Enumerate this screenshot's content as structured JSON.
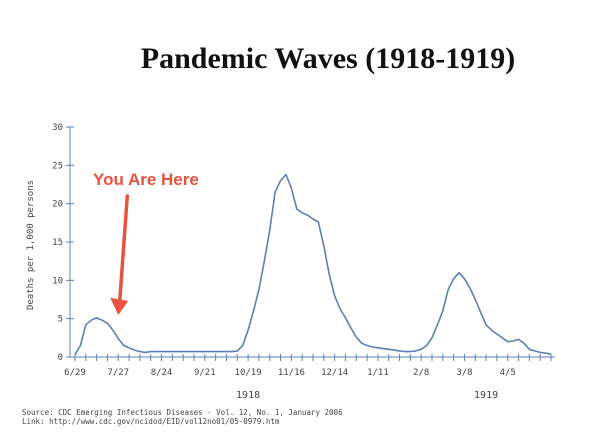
{
  "chart_data": {
    "type": "line",
    "title": "Pandemic Waves (1918-1919)",
    "ylabel": "Deaths per 1,000 persons",
    "ylim": [
      0,
      30
    ],
    "yticks": [
      0,
      5,
      10,
      15,
      20,
      25,
      30
    ],
    "x_tick_labels": [
      "6/29",
      "7/27",
      "8/24",
      "9/21",
      "10/19",
      "11/16",
      "12/14",
      "1/11",
      "2/8",
      "3/8",
      "4/5"
    ],
    "year_labels": [
      "1918",
      "1919"
    ],
    "series": [
      {
        "color": "#5b80b8",
        "x": [
          0,
          0.5,
          1,
          1.5,
          2,
          2.5,
          3,
          3.5,
          4,
          4.5,
          5,
          5.5,
          6,
          6.5,
          7,
          7.5,
          8,
          8.5,
          9,
          9.5,
          10,
          10.5,
          11,
          11.5,
          12,
          12.5,
          13,
          13.5,
          14,
          14.5,
          15,
          15.5,
          16,
          16.5,
          17,
          17.5,
          18,
          18.5,
          19,
          19.5,
          20,
          20.5,
          21,
          21.5,
          22,
          22.5,
          23,
          23.5,
          24,
          24.5,
          25,
          25.5,
          26,
          26.5,
          27,
          27.5,
          28,
          28.5,
          29,
          29.5,
          30,
          30.5,
          31,
          31.5,
          32,
          32.5,
          33,
          33.5,
          34,
          34.5,
          35,
          35.5,
          36,
          36.5,
          37,
          37.5,
          38,
          38.5,
          39,
          39.5,
          40,
          40.5,
          41,
          41.5,
          42,
          42.5,
          43,
          43.5,
          44
        ],
        "values": [
          0.3,
          1.5,
          4.2,
          4.8,
          5.1,
          4.8,
          4.4,
          3.5,
          2.4,
          1.5,
          1.2,
          0.9,
          0.7,
          0.6,
          0.7,
          0.7,
          0.7,
          0.7,
          0.7,
          0.7,
          0.7,
          0.7,
          0.7,
          0.7,
          0.7,
          0.7,
          0.7,
          0.7,
          0.7,
          0.7,
          0.8,
          1.5,
          3.5,
          6.0,
          8.8,
          12.5,
          16.5,
          21.5,
          23.0,
          23.8,
          22.0,
          19.3,
          18.8,
          18.5,
          18.0,
          17.6,
          14.5,
          10.8,
          8.0,
          6.3,
          5.1,
          3.8,
          2.6,
          1.8,
          1.5,
          1.3,
          1.2,
          1.1,
          1.0,
          0.9,
          0.8,
          0.7,
          0.7,
          0.8,
          1.0,
          1.5,
          2.5,
          4.2,
          6.0,
          8.8,
          10.2,
          11.0,
          10.2,
          9.0,
          7.5,
          5.8,
          4.2,
          3.5,
          3.0,
          2.5,
          2.0,
          2.1,
          2.3,
          1.8,
          1.0,
          0.8,
          0.6,
          0.5,
          0.4
        ]
      }
    ],
    "annotation": {
      "text": "You Are Here",
      "color": "#e8523f",
      "x": 4,
      "y": 5.1
    }
  },
  "source": {
    "line1": "Source: CDC Emerging Infectious Diseases - Vol. 12, No. 1, January 2006",
    "line2": "Link: http://www.cdc.gov/ncidod/EID/vol12no01/05-0979.htm"
  }
}
